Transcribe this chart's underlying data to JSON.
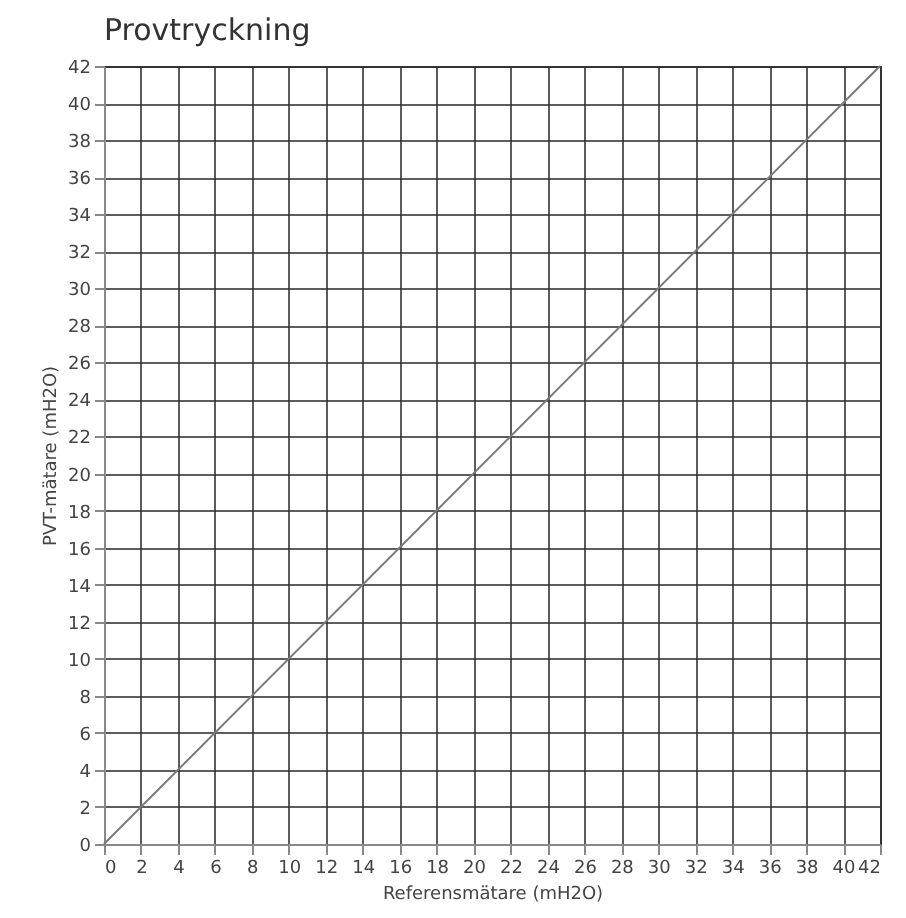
{
  "chart_data": {
    "type": "line",
    "title": "Provtryckning",
    "xlabel": "Referensmätare (mH2O)",
    "ylabel": "PVT-mätare (mH2O)",
    "x": [
      0,
      42
    ],
    "series": [
      {
        "color": "#7a7a7a",
        "values": [
          0,
          42
        ]
      }
    ],
    "xlim": [
      0,
      42
    ],
    "ylim": [
      0,
      42
    ],
    "xticks": [
      0,
      2,
      4,
      6,
      8,
      10,
      12,
      14,
      16,
      18,
      20,
      22,
      24,
      26,
      28,
      30,
      32,
      34,
      36,
      38,
      40,
      42
    ],
    "yticks": [
      0,
      2,
      4,
      6,
      8,
      10,
      12,
      14,
      16,
      18,
      20,
      22,
      24,
      26,
      28,
      30,
      32,
      34,
      36,
      38,
      40,
      42
    ],
    "grid": true,
    "marker": "none",
    "line_style": "solid"
  }
}
